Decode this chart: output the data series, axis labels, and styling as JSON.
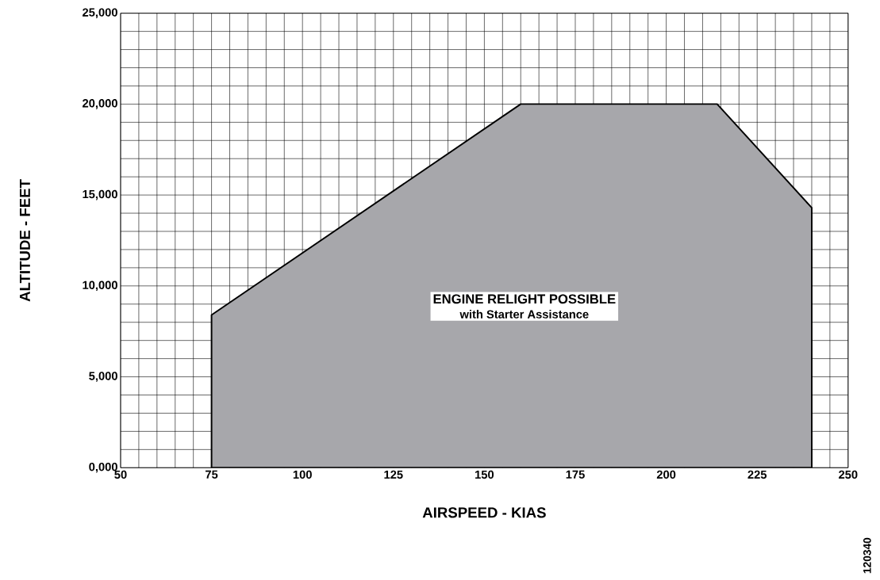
{
  "chart_data": {
    "type": "area",
    "xlabel": "AIRSPEED - KIAS",
    "ylabel": "ALTITUDE - FEET",
    "x": [
      75,
      75,
      160,
      214,
      240,
      240
    ],
    "values": [
      0,
      8400,
      20000,
      20000,
      14300,
      0
    ],
    "color": "#a7a7ab",
    "xlim": [
      50,
      250
    ],
    "xticks": [
      50,
      75,
      100,
      125,
      150,
      175,
      200,
      225,
      250
    ],
    "ylim": [
      0,
      25000
    ],
    "yticks": [
      {
        "value": 0,
        "label": "0,000"
      },
      {
        "value": 5000,
        "label": "5,000"
      },
      {
        "value": 10000,
        "label": "10,000"
      },
      {
        "value": 15000,
        "label": "15,000"
      },
      {
        "value": 20000,
        "label": "20,000"
      },
      {
        "value": 25000,
        "label": "25,000"
      }
    ],
    "grid": true,
    "annotations": [
      "ENGINE RELIGHT POSSIBLE",
      "with Starter Assistance",
      "120340"
    ]
  }
}
